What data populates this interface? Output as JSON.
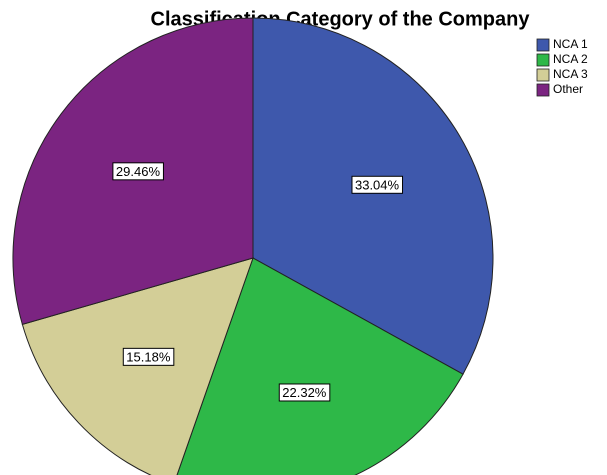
{
  "chart_data": {
    "type": "pie",
    "title": "Classification Category of the Company",
    "categories": [
      "NCA 1",
      "NCA 2",
      "NCA 3",
      "Other"
    ],
    "values": [
      33.04,
      22.32,
      15.18,
      29.46
    ],
    "value_labels": [
      "33.04%",
      "22.32%",
      "15.18%",
      "29.46%"
    ],
    "colors": [
      "#3e58ac",
      "#2eb848",
      "#d3ce97",
      "#7b2481"
    ],
    "legend": "upper right"
  }
}
